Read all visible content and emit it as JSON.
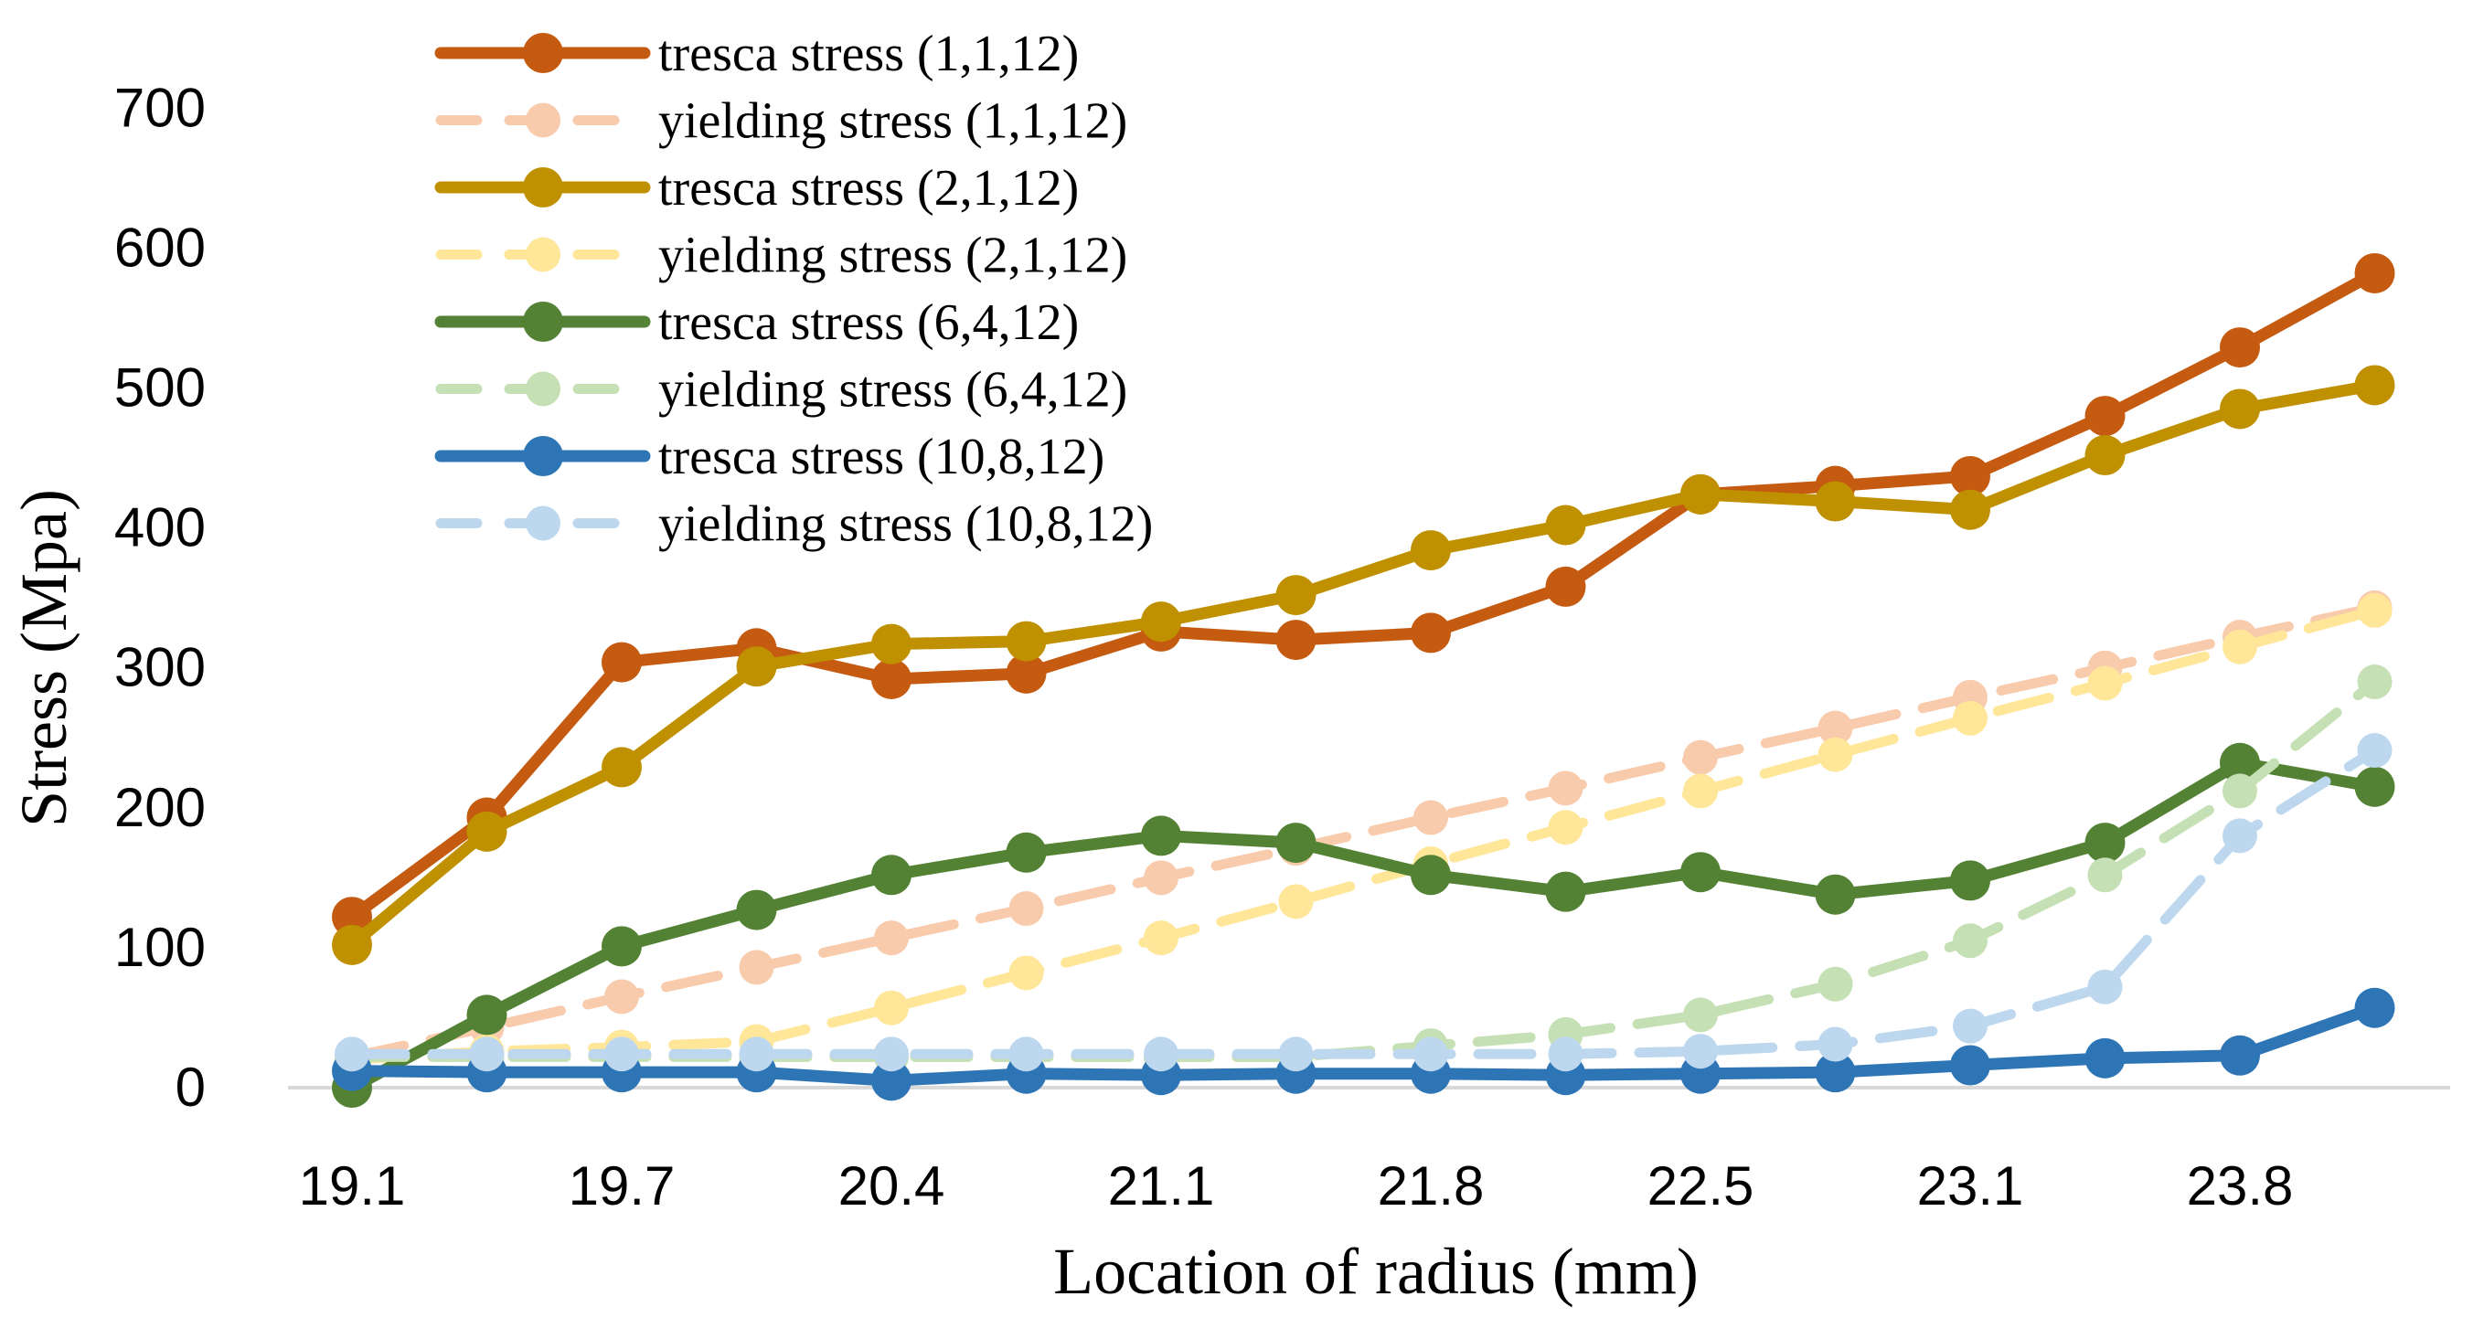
{
  "chart_data": {
    "type": "line",
    "xlabel": "Location of radius (mm)",
    "ylabel": "Stress (Mpa)",
    "ylim": [
      0,
      700
    ],
    "y_ticks": [
      "0",
      "100",
      "200",
      "300",
      "400",
      "500",
      "600",
      "700"
    ],
    "x_tick_labels": [
      "19.1",
      "19.7",
      "20.4",
      "21.1",
      "21.8",
      "22.5",
      "23.1",
      "23.8"
    ],
    "x_tick_every": 2,
    "num_points": 16,
    "grid": false,
    "legend_position": "top-left",
    "series": [
      {
        "name": "tresca stress (1,1,12)",
        "color": "#C55A11",
        "style": "solid",
        "values": [
          122,
          193,
          304,
          314,
          292,
          296,
          326,
          320,
          325,
          358,
          424,
          430,
          437,
          480,
          529,
          582
        ]
      },
      {
        "name": "yielding stress (1,1,12)",
        "color": "#F8CBAD",
        "style": "dashed",
        "values": [
          22,
          43,
          65,
          86,
          107,
          128,
          150,
          171,
          193,
          214,
          236,
          257,
          279,
          300,
          322,
          343
        ]
      },
      {
        "name": "tresca stress (2,1,12)",
        "color": "#BF9000",
        "style": "solid",
        "values": [
          102,
          183,
          229,
          301,
          317,
          319,
          333,
          352,
          384,
          402,
          424,
          419,
          413,
          452,
          485,
          502
        ]
      },
      {
        "name": "yielding stress (2,1,12)",
        "color": "#FFE699",
        "style": "dashed",
        "values": [
          20,
          26,
          29,
          33,
          57,
          82,
          107,
          133,
          160,
          186,
          212,
          238,
          264,
          289,
          315,
          341
        ]
      },
      {
        "name": "tresca stress (6,4,12)",
        "color": "#548235",
        "style": "solid",
        "values": [
          0,
          52,
          101,
          127,
          152,
          168,
          180,
          175,
          152,
          140,
          154,
          138,
          148,
          175,
          232,
          215
        ]
      },
      {
        "name": "yielding stress (6,4,12)",
        "color": "#C5E0B4",
        "style": "dashed",
        "values": [
          22,
          22,
          22,
          22,
          22,
          22,
          22,
          22,
          30,
          38,
          52,
          74,
          105,
          152,
          212,
          290
        ]
      },
      {
        "name": "tresca stress (10,8,12)",
        "color": "#2E75B6",
        "style": "solid",
        "values": [
          12,
          11,
          11,
          11,
          5,
          10,
          9,
          10,
          10,
          9,
          10,
          11,
          16,
          21,
          23,
          57
        ]
      },
      {
        "name": "yielding stress (10,8,12)",
        "color": "#BDD7EE",
        "style": "dashed",
        "values": [
          24,
          24,
          24,
          24,
          24,
          24,
          24,
          24,
          24,
          24,
          26,
          31,
          44,
          72,
          180,
          241
        ]
      }
    ]
  }
}
